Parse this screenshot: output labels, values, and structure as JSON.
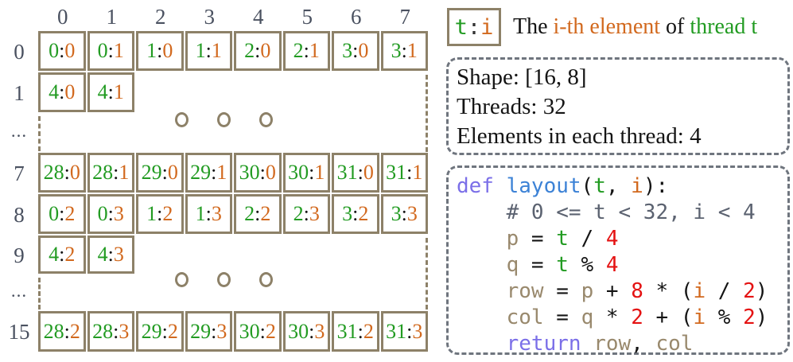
{
  "diagram": {
    "cell_separator": ":",
    "col_headers": [
      "0",
      "1",
      "2",
      "3",
      "4",
      "5",
      "6",
      "7"
    ],
    "rows": [
      {
        "label": "0",
        "cells": [
          [
            "0",
            "0"
          ],
          [
            "0",
            "1"
          ],
          [
            "1",
            "0"
          ],
          [
            "1",
            "1"
          ],
          [
            "2",
            "0"
          ],
          [
            "2",
            "1"
          ],
          [
            "3",
            "0"
          ],
          [
            "3",
            "1"
          ]
        ]
      },
      {
        "label": "1",
        "cells": [
          [
            "4",
            "0"
          ],
          [
            "4",
            "1"
          ]
        ]
      },
      {
        "label": "...",
        "cells": []
      },
      {
        "label": "7",
        "cells": [
          [
            "28",
            "0"
          ],
          [
            "28",
            "1"
          ],
          [
            "29",
            "0"
          ],
          [
            "29",
            "1"
          ],
          [
            "30",
            "0"
          ],
          [
            "30",
            "1"
          ],
          [
            "31",
            "0"
          ],
          [
            "31",
            "1"
          ]
        ]
      },
      {
        "label": "8",
        "cells": [
          [
            "0",
            "2"
          ],
          [
            "0",
            "3"
          ],
          [
            "1",
            "2"
          ],
          [
            "1",
            "3"
          ],
          [
            "2",
            "2"
          ],
          [
            "2",
            "3"
          ],
          [
            "3",
            "2"
          ],
          [
            "3",
            "3"
          ]
        ]
      },
      {
        "label": "9",
        "cells": [
          [
            "4",
            "2"
          ],
          [
            "4",
            "3"
          ]
        ]
      },
      {
        "label": "...",
        "cells": []
      },
      {
        "label": "15",
        "cells": [
          [
            "28",
            "2"
          ],
          [
            "28",
            "3"
          ],
          [
            "29",
            "2"
          ],
          [
            "29",
            "3"
          ],
          [
            "30",
            "2"
          ],
          [
            "30",
            "3"
          ],
          [
            "31",
            "2"
          ],
          [
            "31",
            "3"
          ]
        ]
      }
    ]
  },
  "legend": {
    "box": {
      "t": "t",
      "colon": ":",
      "i": "i"
    },
    "text_parts": [
      {
        "text": "The ",
        "color": "plain"
      },
      {
        "text": "i-th element",
        "color": "orange"
      },
      {
        "text": " of ",
        "color": "plain"
      },
      {
        "text": "thread t",
        "color": "green"
      }
    ]
  },
  "info": {
    "lines": [
      "Shape: [16, 8]",
      "Threads: 32",
      "Elements in each thread: 4"
    ]
  },
  "code": {
    "lines": [
      [
        {
          "t": "def",
          "c": "kw"
        },
        {
          "t": " ",
          "c": "op"
        },
        {
          "t": "layout",
          "c": "fn"
        },
        {
          "t": "(",
          "c": "op"
        },
        {
          "t": "t",
          "c": "tv"
        },
        {
          "t": ", ",
          "c": "op"
        },
        {
          "t": "i",
          "c": "iv"
        },
        {
          "t": "):",
          "c": "op"
        }
      ],
      [
        {
          "t": "    # 0 <= t < 32, i < 4",
          "c": "com"
        }
      ],
      [
        {
          "t": "    ",
          "c": "op"
        },
        {
          "t": "p",
          "c": "var"
        },
        {
          "t": " = ",
          "c": "op"
        },
        {
          "t": "t",
          "c": "tv"
        },
        {
          "t": " / ",
          "c": "op"
        },
        {
          "t": "4",
          "c": "num"
        }
      ],
      [
        {
          "t": "    ",
          "c": "op"
        },
        {
          "t": "q",
          "c": "var"
        },
        {
          "t": " = ",
          "c": "op"
        },
        {
          "t": "t",
          "c": "tv"
        },
        {
          "t": " % ",
          "c": "op"
        },
        {
          "t": "4",
          "c": "num"
        }
      ],
      [
        {
          "t": "    ",
          "c": "op"
        },
        {
          "t": "row",
          "c": "var"
        },
        {
          "t": " = ",
          "c": "op"
        },
        {
          "t": "p",
          "c": "var"
        },
        {
          "t": " + ",
          "c": "op"
        },
        {
          "t": "8",
          "c": "num"
        },
        {
          "t": " * (",
          "c": "op"
        },
        {
          "t": "i",
          "c": "iv"
        },
        {
          "t": " / ",
          "c": "op"
        },
        {
          "t": "2",
          "c": "num"
        },
        {
          "t": ")",
          "c": "op"
        }
      ],
      [
        {
          "t": "    ",
          "c": "op"
        },
        {
          "t": "col",
          "c": "var"
        },
        {
          "t": " = ",
          "c": "op"
        },
        {
          "t": "q",
          "c": "var"
        },
        {
          "t": " * ",
          "c": "op"
        },
        {
          "t": "2",
          "c": "num"
        },
        {
          "t": " + (",
          "c": "op"
        },
        {
          "t": "i",
          "c": "iv"
        },
        {
          "t": " % ",
          "c": "op"
        },
        {
          "t": "2",
          "c": "num"
        },
        {
          "t": ")",
          "c": "op"
        }
      ],
      [
        {
          "t": "    ",
          "c": "op"
        },
        {
          "t": "return",
          "c": "kw"
        },
        {
          "t": " ",
          "c": "op"
        },
        {
          "t": "row",
          "c": "var"
        },
        {
          "t": ", ",
          "c": "op"
        },
        {
          "t": "col",
          "c": "var"
        }
      ]
    ]
  },
  "colors": {
    "thread_green": "#229B22",
    "element_orange": "#D2691E",
    "number_red": "#E41212",
    "keyword_purple": "#7B6FE8",
    "function_blue": "#3C82D6",
    "variable_brown": "#99896D",
    "comment_gray": "#5B6270",
    "grid_border_tan": "#8D8168",
    "header_label_gray": "#4A5160",
    "dashed_box_gray": "#6F757E"
  }
}
